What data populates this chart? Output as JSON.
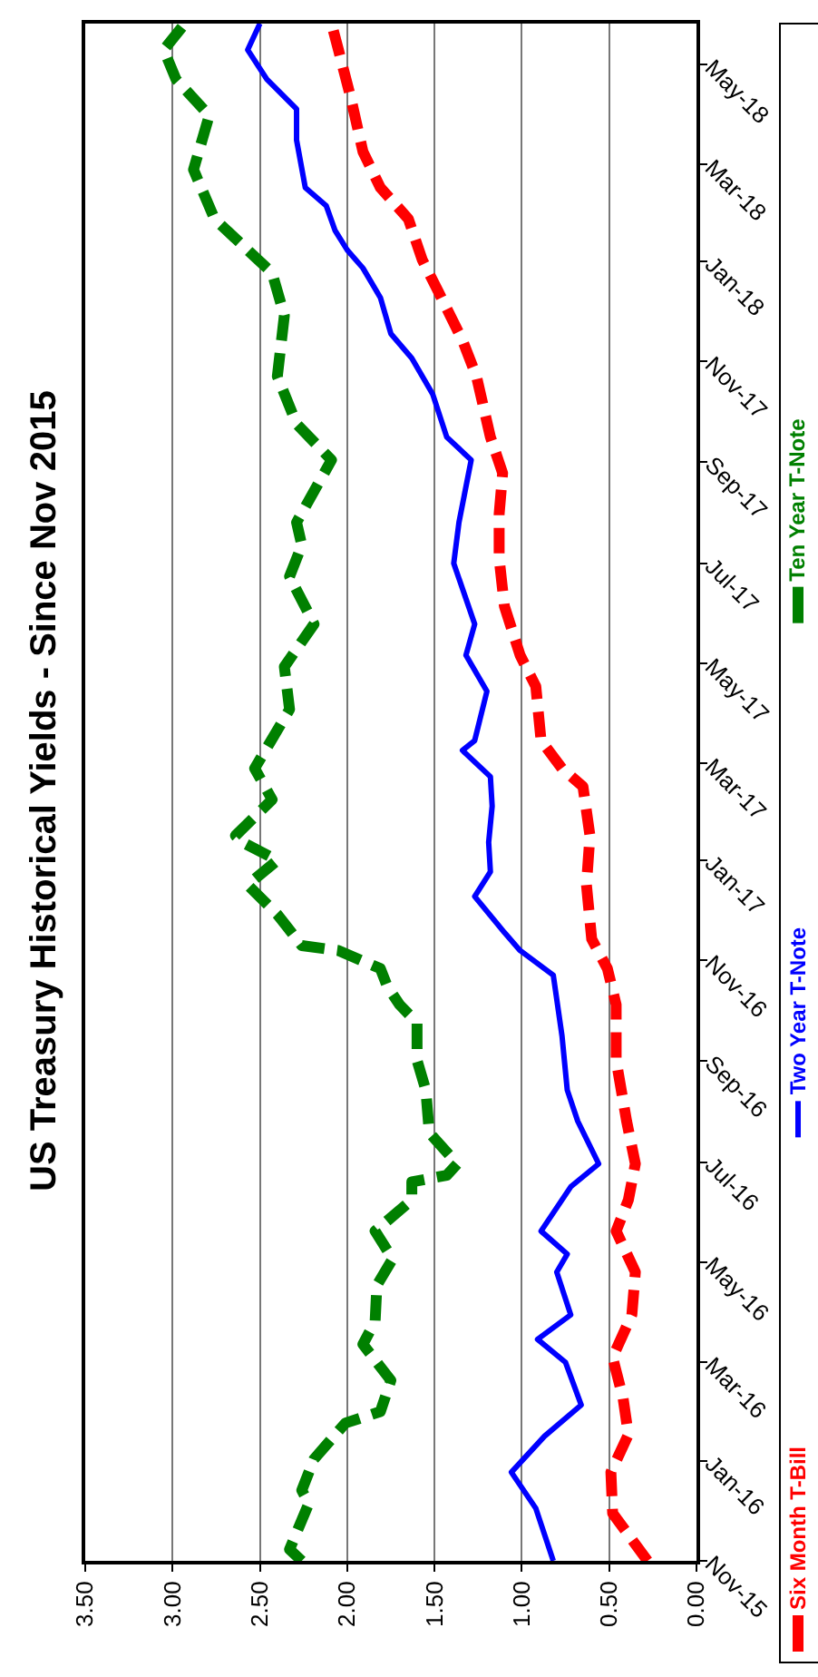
{
  "chart_data": {
    "type": "line",
    "title": "US Treasury Historical Yields - Since Nov 2015",
    "orientation": "horizontal",
    "ylim": [
      "2015-11-01",
      "2018-05-26"
    ],
    "yticks": [
      {
        "value": "2015-11-01",
        "label": "Nov-15"
      },
      {
        "value": "2016-01-01",
        "label": "Jan-16"
      },
      {
        "value": "2016-03-01",
        "label": "Mar-16"
      },
      {
        "value": "2016-05-01",
        "label": "May-16"
      },
      {
        "value": "2016-07-01",
        "label": "Jul-16"
      },
      {
        "value": "2016-09-01",
        "label": "Sep-16"
      },
      {
        "value": "2016-11-01",
        "label": "Nov-16"
      },
      {
        "value": "2017-01-01",
        "label": "Jan-17"
      },
      {
        "value": "2017-03-01",
        "label": "Mar-17"
      },
      {
        "value": "2017-05-01",
        "label": "May-17"
      },
      {
        "value": "2017-07-01",
        "label": "Jul-17"
      },
      {
        "value": "2017-09-01",
        "label": "Sep-17"
      },
      {
        "value": "2017-11-01",
        "label": "Nov-17"
      },
      {
        "value": "2018-01-01",
        "label": "Jan-18"
      },
      {
        "value": "2018-03-01",
        "label": "Mar-18"
      },
      {
        "value": "2018-05-01",
        "label": "May-18"
      }
    ],
    "xlim": [
      3.5,
      0
    ],
    "xticks": [
      {
        "value": 0,
        "label": "0.00"
      },
      {
        "value": 0.5,
        "label": "0.50"
      },
      {
        "value": 1,
        "label": "1.00"
      },
      {
        "value": 1.5,
        "label": "1.50"
      },
      {
        "value": 2,
        "label": "2.00"
      },
      {
        "value": 2.5,
        "label": "2.50"
      },
      {
        "value": 3,
        "label": "3.00"
      },
      {
        "value": 3.5,
        "label": "3.50"
      }
    ],
    "grid": "x",
    "legend": "right",
    "series": [
      {
        "name": "Six Month T-Bill",
        "color": "#ff0000",
        "line_style": "dashed",
        "x": [
          "2015-11-01",
          "2015-11-30",
          "2015-12-25",
          "2016-01-17",
          "2016-02-08",
          "2016-03-04",
          "2016-03-30",
          "2016-04-25",
          "2016-05-20",
          "2016-06-08",
          "2016-06-30",
          "2016-07-26",
          "2016-09-01",
          "2016-10-05",
          "2016-10-27",
          "2016-11-14",
          "2016-12-17",
          "2017-01-16",
          "2017-02-15",
          "2017-02-26",
          "2017-03-15",
          "2017-04-17",
          "2017-05-06",
          "2017-06-05",
          "2017-07-04",
          "2017-07-31",
          "2017-08-25",
          "2017-09-16",
          "2017-10-23",
          "2017-11-14",
          "2017-12-14",
          "2018-01-02",
          "2018-01-27",
          "2018-02-15",
          "2018-03-09",
          "2018-04-11",
          "2018-05-10",
          "2018-05-26"
        ],
        "values": [
          0.28,
          0.48,
          0.49,
          0.39,
          0.42,
          0.48,
          0.37,
          0.35,
          0.46,
          0.39,
          0.35,
          0.4,
          0.46,
          0.46,
          0.51,
          0.6,
          0.63,
          0.61,
          0.65,
          0.77,
          0.89,
          0.92,
          1.01,
          1.1,
          1.13,
          1.13,
          1.11,
          1.18,
          1.26,
          1.34,
          1.48,
          1.57,
          1.65,
          1.81,
          1.91,
          1.98,
          2.05,
          2.09
        ]
      },
      {
        "name": "Two Year T-Note",
        "color": "#0000ff",
        "line_style": "solid",
        "x": [
          "2015-11-01",
          "2015-12-03",
          "2015-12-25",
          "2016-01-16",
          "2016-02-04",
          "2016-03-01",
          "2016-03-15",
          "2016-03-30",
          "2016-04-25",
          "2016-05-06",
          "2016-05-20",
          "2016-06-16",
          "2016-06-30",
          "2016-07-26",
          "2016-08-14",
          "2016-09-16",
          "2016-10-23",
          "2016-11-07",
          "2016-11-18",
          "2016-12-10",
          "2016-12-25",
          "2017-01-12",
          "2017-02-03",
          "2017-02-21",
          "2017-03-09",
          "2017-03-15",
          "2017-04-14",
          "2017-05-06",
          "2017-05-25",
          "2017-07-01",
          "2017-07-26",
          "2017-09-02",
          "2017-09-16",
          "2017-10-12",
          "2017-11-03",
          "2017-11-18",
          "2017-12-10",
          "2017-12-28",
          "2018-01-08",
          "2018-01-20",
          "2018-02-04",
          "2018-02-15",
          "2018-03-16",
          "2018-04-04",
          "2018-04-22",
          "2018-05-10",
          "2018-05-26"
        ],
        "values": [
          0.82,
          0.92,
          1.06,
          0.87,
          0.66,
          0.75,
          0.91,
          0.72,
          0.8,
          0.74,
          0.89,
          0.72,
          0.56,
          0.68,
          0.74,
          0.77,
          0.82,
          1.01,
          1.1,
          1.27,
          1.18,
          1.19,
          1.17,
          1.18,
          1.34,
          1.27,
          1.2,
          1.32,
          1.27,
          1.39,
          1.36,
          1.29,
          1.43,
          1.51,
          1.63,
          1.75,
          1.81,
          1.91,
          2.0,
          2.07,
          2.12,
          2.24,
          2.29,
          2.29,
          2.46,
          2.57,
          2.5
        ]
      },
      {
        "name": "Ten Year T-Note",
        "color": "#008000",
        "line_style": "dashed",
        "x": [
          "2015-11-01",
          "2015-11-08",
          "2015-12-06",
          "2015-12-14",
          "2016-01-02",
          "2016-01-24",
          "2016-01-31",
          "2016-02-19",
          "2016-03-12",
          "2016-03-26",
          "2016-04-17",
          "2016-05-03",
          "2016-05-20",
          "2016-06-08",
          "2016-06-19",
          "2016-06-23",
          "2016-06-30",
          "2016-07-19",
          "2016-08-14",
          "2016-09-01",
          "2016-09-24",
          "2016-10-05",
          "2016-10-16",
          "2016-10-27",
          "2016-11-07",
          "2016-11-10",
          "2016-11-29",
          "2016-12-17",
          "2017-01-01",
          "2017-01-12",
          "2017-01-16",
          "2017-02-07",
          "2017-02-26",
          "2017-04-03",
          "2017-04-29",
          "2017-05-25",
          "2017-06-23",
          "2017-07-12",
          "2017-07-26",
          "2017-09-02",
          "2017-09-24",
          "2017-10-23",
          "2017-11-29",
          "2017-12-25",
          "2018-01-27",
          "2018-02-26",
          "2018-03-31",
          "2018-04-22",
          "2018-05-10",
          "2018-05-26"
        ],
        "values": [
          2.26,
          2.33,
          2.22,
          2.26,
          2.19,
          2.01,
          1.81,
          1.75,
          1.91,
          1.84,
          1.83,
          1.74,
          1.84,
          1.63,
          1.63,
          1.43,
          1.37,
          1.53,
          1.55,
          1.6,
          1.6,
          1.7,
          1.77,
          1.81,
          2.05,
          2.26,
          2.4,
          2.57,
          2.4,
          2.6,
          2.64,
          2.43,
          2.53,
          2.33,
          2.36,
          2.19,
          2.33,
          2.26,
          2.29,
          2.09,
          2.29,
          2.4,
          2.36,
          2.43,
          2.76,
          2.88,
          2.79,
          2.98,
          3.05,
          2.93
        ]
      }
    ]
  }
}
